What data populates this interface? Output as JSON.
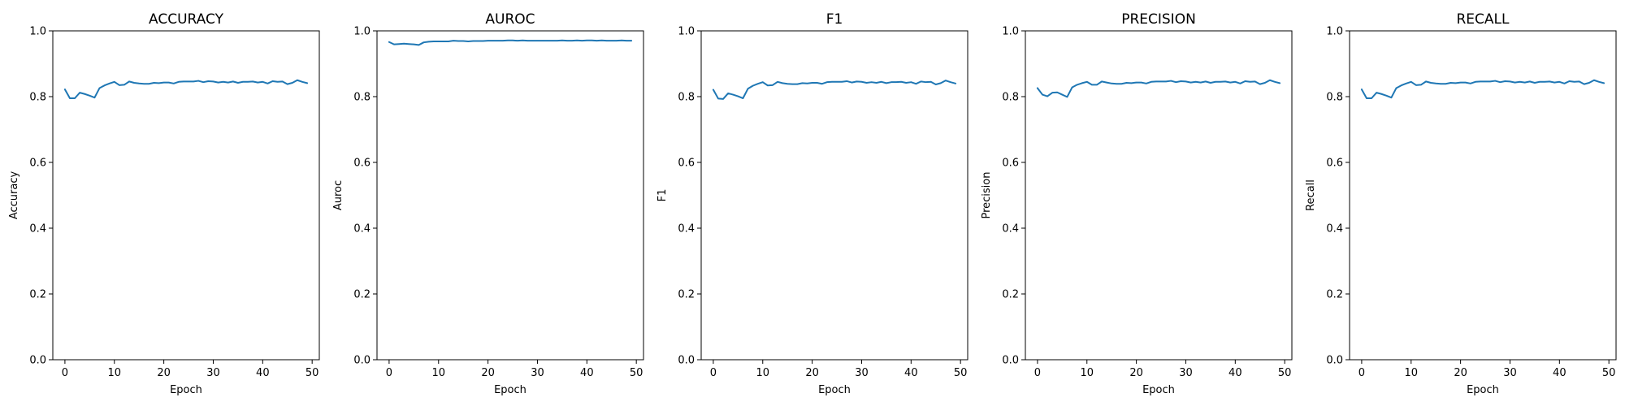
{
  "chart_data": [
    {
      "type": "line",
      "title": "ACCURACY",
      "xlabel": "Epoch",
      "ylabel": "Accuracy",
      "xlim": [
        -2.45,
        51.45
      ],
      "ylim": [
        0.0,
        1.0
      ],
      "xticks": [
        "0",
        "10",
        "20",
        "30",
        "40",
        "50"
      ],
      "yticks": [
        "0.0",
        "0.2",
        "0.4",
        "0.6",
        "0.8",
        "1.0"
      ],
      "grid": false,
      "series": [
        {
          "color": "#1f77b4",
          "x": [
            0,
            1,
            2,
            3,
            4,
            5,
            6,
            7,
            8,
            9,
            10,
            11,
            12,
            13,
            14,
            15,
            16,
            17,
            18,
            19,
            20,
            21,
            22,
            23,
            24,
            25,
            26,
            27,
            28,
            29,
            30,
            31,
            32,
            33,
            34,
            35,
            36,
            37,
            38,
            39,
            40,
            41,
            42,
            43,
            44,
            45,
            46,
            47,
            48,
            49
          ],
          "values": [
            0.822,
            0.795,
            0.795,
            0.812,
            0.808,
            0.803,
            0.797,
            0.826,
            0.834,
            0.84,
            0.845,
            0.835,
            0.836,
            0.846,
            0.842,
            0.84,
            0.839,
            0.839,
            0.842,
            0.841,
            0.843,
            0.843,
            0.84,
            0.845,
            0.846,
            0.846,
            0.846,
            0.848,
            0.844,
            0.847,
            0.846,
            0.843,
            0.845,
            0.843,
            0.846,
            0.842,
            0.845,
            0.845,
            0.846,
            0.843,
            0.845,
            0.84,
            0.847,
            0.845,
            0.846,
            0.838,
            0.842,
            0.85,
            0.845,
            0.841
          ]
        }
      ]
    },
    {
      "type": "line",
      "title": "AUROC",
      "xlabel": "Epoch",
      "ylabel": "Auroc",
      "xlim": [
        -2.45,
        51.45
      ],
      "ylim": [
        0.0,
        1.0
      ],
      "xticks": [
        "0",
        "10",
        "20",
        "30",
        "40",
        "50"
      ],
      "yticks": [
        "0.0",
        "0.2",
        "0.4",
        "0.6",
        "0.8",
        "1.0"
      ],
      "grid": false,
      "series": [
        {
          "color": "#1f77b4",
          "x": [
            0,
            1,
            2,
            3,
            4,
            5,
            6,
            7,
            8,
            9,
            10,
            11,
            12,
            13,
            14,
            15,
            16,
            17,
            18,
            19,
            20,
            21,
            22,
            23,
            24,
            25,
            26,
            27,
            28,
            29,
            30,
            31,
            32,
            33,
            34,
            35,
            36,
            37,
            38,
            39,
            40,
            41,
            42,
            43,
            44,
            45,
            46,
            47,
            48,
            49
          ],
          "values": [
            0.966,
            0.959,
            0.96,
            0.961,
            0.96,
            0.959,
            0.957,
            0.965,
            0.967,
            0.968,
            0.968,
            0.968,
            0.968,
            0.97,
            0.969,
            0.969,
            0.968,
            0.969,
            0.969,
            0.969,
            0.97,
            0.97,
            0.97,
            0.97,
            0.971,
            0.971,
            0.97,
            0.971,
            0.97,
            0.97,
            0.97,
            0.97,
            0.97,
            0.97,
            0.97,
            0.971,
            0.97,
            0.97,
            0.971,
            0.97,
            0.971,
            0.971,
            0.97,
            0.971,
            0.97,
            0.97,
            0.97,
            0.971,
            0.97,
            0.97
          ]
        }
      ]
    },
    {
      "type": "line",
      "title": "F1",
      "xlabel": "Epoch",
      "ylabel": "F1",
      "xlim": [
        -2.45,
        51.45
      ],
      "ylim": [
        0.0,
        1.0
      ],
      "xticks": [
        "0",
        "10",
        "20",
        "30",
        "40",
        "50"
      ],
      "yticks": [
        "0.0",
        "0.2",
        "0.4",
        "0.6",
        "0.8",
        "1.0"
      ],
      "grid": false,
      "series": [
        {
          "color": "#1f77b4",
          "x": [
            0,
            1,
            2,
            3,
            4,
            5,
            6,
            7,
            8,
            9,
            10,
            11,
            12,
            13,
            14,
            15,
            16,
            17,
            18,
            19,
            20,
            21,
            22,
            23,
            24,
            25,
            26,
            27,
            28,
            29,
            30,
            31,
            32,
            33,
            34,
            35,
            36,
            37,
            38,
            39,
            40,
            41,
            42,
            43,
            44,
            45,
            46,
            47,
            48,
            49
          ],
          "values": [
            0.821,
            0.794,
            0.793,
            0.81,
            0.806,
            0.801,
            0.795,
            0.824,
            0.833,
            0.839,
            0.844,
            0.834,
            0.835,
            0.845,
            0.841,
            0.839,
            0.838,
            0.838,
            0.841,
            0.84,
            0.842,
            0.842,
            0.839,
            0.844,
            0.845,
            0.845,
            0.845,
            0.847,
            0.843,
            0.846,
            0.845,
            0.842,
            0.844,
            0.842,
            0.845,
            0.841,
            0.844,
            0.844,
            0.845,
            0.842,
            0.844,
            0.839,
            0.846,
            0.844,
            0.845,
            0.837,
            0.841,
            0.849,
            0.844,
            0.84
          ]
        }
      ]
    },
    {
      "type": "line",
      "title": "PRECISION",
      "xlabel": "Epoch",
      "ylabel": "Precision",
      "xlim": [
        -2.45,
        51.45
      ],
      "ylim": [
        0.0,
        1.0
      ],
      "xticks": [
        "0",
        "10",
        "20",
        "30",
        "40",
        "50"
      ],
      "yticks": [
        "0.0",
        "0.2",
        "0.4",
        "0.6",
        "0.8",
        "1.0"
      ],
      "grid": false,
      "series": [
        {
          "color": "#1f77b4",
          "x": [
            0,
            1,
            2,
            3,
            4,
            5,
            6,
            7,
            8,
            9,
            10,
            11,
            12,
            13,
            14,
            15,
            16,
            17,
            18,
            19,
            20,
            21,
            22,
            23,
            24,
            25,
            26,
            27,
            28,
            29,
            30,
            31,
            32,
            33,
            34,
            35,
            36,
            37,
            38,
            39,
            40,
            41,
            42,
            43,
            44,
            45,
            46,
            47,
            48,
            49
          ],
          "values": [
            0.826,
            0.806,
            0.801,
            0.812,
            0.813,
            0.806,
            0.799,
            0.828,
            0.836,
            0.841,
            0.845,
            0.836,
            0.836,
            0.846,
            0.843,
            0.84,
            0.839,
            0.839,
            0.842,
            0.841,
            0.843,
            0.843,
            0.84,
            0.845,
            0.846,
            0.846,
            0.846,
            0.848,
            0.844,
            0.847,
            0.846,
            0.843,
            0.845,
            0.843,
            0.846,
            0.842,
            0.845,
            0.845,
            0.846,
            0.843,
            0.845,
            0.84,
            0.847,
            0.845,
            0.846,
            0.838,
            0.842,
            0.85,
            0.845,
            0.841
          ]
        }
      ]
    },
    {
      "type": "line",
      "title": "RECALL",
      "xlabel": "Epoch",
      "ylabel": "Recall",
      "xlim": [
        -2.45,
        51.45
      ],
      "ylim": [
        0.0,
        1.0
      ],
      "xticks": [
        "0",
        "10",
        "20",
        "30",
        "40",
        "50"
      ],
      "yticks": [
        "0.0",
        "0.2",
        "0.4",
        "0.6",
        "0.8",
        "1.0"
      ],
      "grid": false,
      "series": [
        {
          "color": "#1f77b4",
          "x": [
            0,
            1,
            2,
            3,
            4,
            5,
            6,
            7,
            8,
            9,
            10,
            11,
            12,
            13,
            14,
            15,
            16,
            17,
            18,
            19,
            20,
            21,
            22,
            23,
            24,
            25,
            26,
            27,
            28,
            29,
            30,
            31,
            32,
            33,
            34,
            35,
            36,
            37,
            38,
            39,
            40,
            41,
            42,
            43,
            44,
            45,
            46,
            47,
            48,
            49
          ],
          "values": [
            0.822,
            0.795,
            0.795,
            0.812,
            0.808,
            0.803,
            0.797,
            0.826,
            0.834,
            0.84,
            0.845,
            0.835,
            0.836,
            0.846,
            0.842,
            0.84,
            0.839,
            0.839,
            0.842,
            0.841,
            0.843,
            0.843,
            0.84,
            0.845,
            0.846,
            0.846,
            0.846,
            0.848,
            0.844,
            0.847,
            0.846,
            0.843,
            0.845,
            0.843,
            0.846,
            0.842,
            0.845,
            0.845,
            0.846,
            0.843,
            0.845,
            0.84,
            0.847,
            0.845,
            0.846,
            0.838,
            0.842,
            0.85,
            0.845,
            0.841
          ]
        }
      ]
    }
  ]
}
